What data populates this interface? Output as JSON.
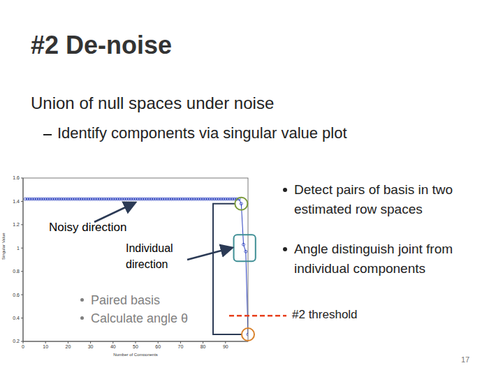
{
  "slide": {
    "title": "#2 De-noise",
    "subtitle": "Union of null spaces under noise",
    "subbullet": "Identify components via singular value plot",
    "bullets": [
      "Detect pairs of basis in two estimated row spaces",
      "Angle distinguish joint from individual components"
    ],
    "page": 17
  },
  "chart_data": {
    "type": "line",
    "x_label": "Number of Components",
    "y_label": "Singular Value",
    "x": [
      1,
      2,
      3,
      4,
      5,
      6,
      7,
      8,
      9,
      10,
      11,
      12,
      13,
      14,
      15,
      16,
      17,
      18,
      19,
      20,
      21,
      22,
      23,
      24,
      25,
      26,
      27,
      28,
      29,
      30,
      31,
      32,
      33,
      34,
      35,
      36,
      37,
      38,
      39,
      40,
      41,
      42,
      43,
      44,
      45,
      46,
      47,
      48,
      49,
      50,
      51,
      52,
      53,
      54,
      55,
      56,
      57,
      58,
      59,
      60,
      61,
      62,
      63,
      64,
      65,
      66,
      67,
      68,
      69,
      70,
      71,
      72,
      73,
      74,
      75,
      76,
      77,
      78,
      79,
      80,
      81,
      82,
      83,
      84,
      85,
      86,
      87,
      88,
      89,
      90,
      91,
      92,
      93,
      94,
      95,
      96,
      97,
      98,
      99,
      100
    ],
    "values": [
      1.42,
      1.42,
      1.42,
      1.42,
      1.42,
      1.42,
      1.42,
      1.42,
      1.42,
      1.42,
      1.42,
      1.42,
      1.42,
      1.42,
      1.42,
      1.42,
      1.42,
      1.42,
      1.42,
      1.42,
      1.42,
      1.42,
      1.42,
      1.42,
      1.42,
      1.42,
      1.42,
      1.42,
      1.42,
      1.42,
      1.42,
      1.42,
      1.42,
      1.42,
      1.42,
      1.42,
      1.42,
      1.42,
      1.42,
      1.42,
      1.42,
      1.42,
      1.42,
      1.42,
      1.42,
      1.42,
      1.42,
      1.42,
      1.42,
      1.42,
      1.42,
      1.42,
      1.42,
      1.42,
      1.42,
      1.42,
      1.42,
      1.42,
      1.42,
      1.42,
      1.42,
      1.42,
      1.42,
      1.42,
      1.42,
      1.42,
      1.42,
      1.42,
      1.42,
      1.42,
      1.42,
      1.42,
      1.42,
      1.42,
      1.42,
      1.42,
      1.42,
      1.42,
      1.42,
      1.42,
      1.42,
      1.42,
      1.42,
      1.42,
      1.42,
      1.42,
      1.42,
      1.42,
      1.42,
      1.42,
      1.42,
      1.42,
      1.42,
      1.42,
      1.42,
      1.42,
      1.38,
      1.03,
      0.97,
      0.26
    ],
    "color": "#2a3fbf",
    "marker": "o",
    "line_style": "solid",
    "xlim": [
      0,
      100
    ],
    "xticks": [
      0,
      10,
      20,
      30,
      40,
      50,
      60,
      70,
      80,
      90
    ],
    "ylim": [
      0.2,
      1.6
    ],
    "yticks": [
      0.2,
      0.4,
      0.6,
      0.8,
      1,
      1.2,
      1.4,
      1.6
    ],
    "annotations": [
      "Noisy direction",
      "Individual direction"
    ],
    "plot_bullets": [
      "Paired basis",
      "Calculate angle θ"
    ],
    "threshold": {
      "value": 0.42,
      "label": "#2 threshold",
      "color": "#e8401c"
    }
  }
}
